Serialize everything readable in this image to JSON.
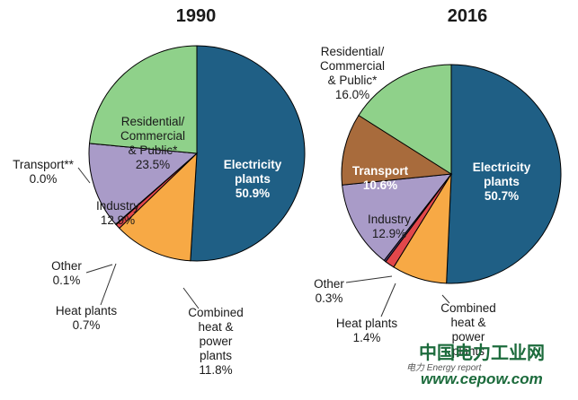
{
  "chart_data": [
    {
      "type": "pie",
      "title": "1990",
      "slices": [
        {
          "name": "Electricity plants",
          "value": 50.9,
          "label": "Electricity\nplants\n50.9%",
          "color": "#1f5f85"
        },
        {
          "name": "Combined heat & power plants",
          "value": 11.8,
          "label": "Combined\nheat &\npower\nplants\n11.8%",
          "color": "#f7a945"
        },
        {
          "name": "Heat plants",
          "value": 0.7,
          "label": "Heat plants\n0.7%",
          "color": "#e2474b"
        },
        {
          "name": "Other",
          "value": 0.1,
          "label": "Other\n0.1%",
          "color": "#4b3f73"
        },
        {
          "name": "Industry",
          "value": 12.9,
          "label": "Industry\n12.9%",
          "color": "#a99bc8"
        },
        {
          "name": "Transport**",
          "value": 0.0,
          "label": "Transport**\n0.0%",
          "color": "#a86b3c"
        },
        {
          "name": "Residential/ Commercial & Public*",
          "value": 23.5,
          "label": "Residential/\nCommercial\n& Public*\n23.5%",
          "color": "#8fd18a"
        }
      ]
    },
    {
      "type": "pie",
      "title": "2016",
      "slices": [
        {
          "name": "Electricity plants",
          "value": 50.7,
          "label": "Electricity\nplants\n50.7%",
          "color": "#1f5f85"
        },
        {
          "name": "Combined heat & power plants",
          "value": 8.1,
          "label": "Combined\nheat &\npower\nplants",
          "color": "#f7a945"
        },
        {
          "name": "Heat plants",
          "value": 1.4,
          "label": "Heat plants\n1.4%",
          "color": "#e2474b"
        },
        {
          "name": "Other",
          "value": 0.3,
          "label": "Other\n0.3%",
          "color": "#4b3f73"
        },
        {
          "name": "Industry",
          "value": 12.9,
          "label": "Industry\n12.9%",
          "color": "#a99bc8"
        },
        {
          "name": "Transport",
          "value": 10.6,
          "label": "Transport\n10.6%",
          "color": "#a86b3c"
        },
        {
          "name": "Residential/ Commercial & Public*",
          "value": 16.0,
          "label": "Residential/\nCommercial\n& Public*\n16.0%",
          "color": "#8fd18a"
        }
      ]
    }
  ],
  "watermark": {
    "site_cn": "中国电力工业网",
    "site_url": "www.cepow.com",
    "small": "电力 Energy report"
  }
}
